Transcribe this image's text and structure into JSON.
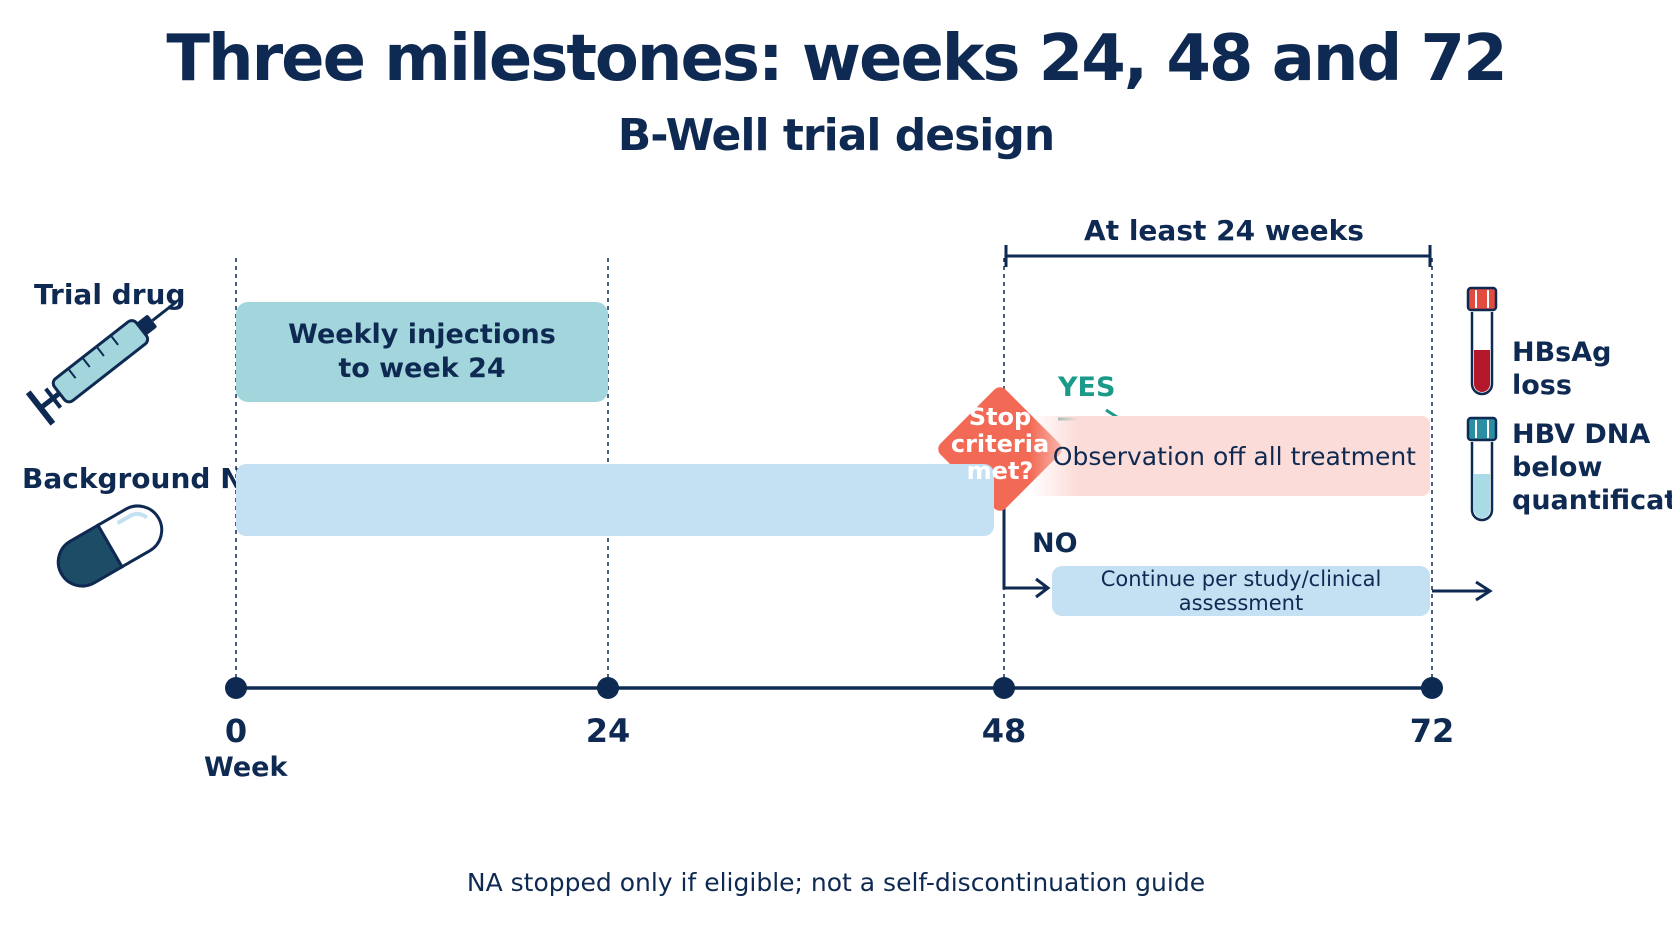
{
  "title": "Three milestones: weeks 24, 48 and 72",
  "subtitle": "B-Well trial design",
  "rows": {
    "trial_drug": "Trial drug",
    "background_na": "Background NA"
  },
  "bars": {
    "injections": "Weekly injections\nto week 24",
    "observation": "Observation off all treatment",
    "continue": "Continue per study/clinical assessment"
  },
  "decision": {
    "text": "Stop\ncriteria\nmet?",
    "yes": "YES",
    "no": "NO"
  },
  "duration_label": "At least 24 weeks",
  "timeline": {
    "ticks": [
      "0",
      "24",
      "48",
      "72"
    ],
    "unit": "Week"
  },
  "outcomes": [
    {
      "label": "HBsAg loss",
      "icon": "red-blood-tube-icon"
    },
    {
      "label": "HBV DNA\nbelow\nquantification",
      "icon": "blue-blood-tube-icon"
    }
  ],
  "footnote": "NA stopped only if eligible; not a self-discontinuation guide",
  "colors": {
    "navy": "#0f2a52",
    "teal": "#a3d6dc",
    "light_blue": "#c4e0f3",
    "salmon": "#fcdcd8",
    "decision": "#f26a55",
    "yes_green": "#1b9a8a"
  }
}
